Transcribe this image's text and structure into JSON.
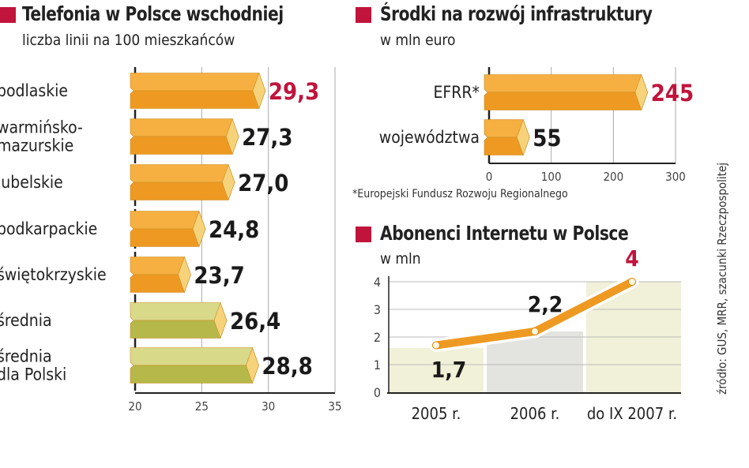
{
  "colors": {
    "accent": "#c0143c",
    "bar_orange_top": "#f5b041",
    "bar_orange_bottom": "#ee9a22",
    "bar_green_top": "#d9d98a",
    "bar_green_bottom": "#b6b94a",
    "line": "#ee9a22",
    "bg_light": "#f1f0d8",
    "bg_grey": "#e3e3e0"
  },
  "chart_data": [
    {
      "type": "bar",
      "orientation": "horizontal",
      "title": "Telefonia w Polsce wschodniej",
      "subtitle": "liczba linii na 100 mieszkańców",
      "categories": [
        "podlaskie",
        "warmińsko-\nmazurskie",
        "lubelskie",
        "podkarpackie",
        "świętokrzyskie",
        "średnia",
        "średnia\ndla Polski"
      ],
      "values": [
        29.3,
        27.3,
        27.0,
        24.8,
        23.7,
        26.4,
        28.8
      ],
      "value_labels": [
        "29,3",
        "27,3",
        "27,0",
        "24,8",
        "23,7",
        "26,4",
        "28,8"
      ],
      "xlim": [
        20,
        35
      ],
      "xticks": [
        "20",
        "25",
        "30",
        "35"
      ],
      "grid": true
    },
    {
      "type": "bar",
      "orientation": "horizontal",
      "title": "Środki na rozwój infrastruktury",
      "subtitle": "w mln euro",
      "categories": [
        "EFRR*",
        "województwa"
      ],
      "values": [
        245,
        55
      ],
      "value_labels": [
        "245",
        "55"
      ],
      "xlim": [
        0,
        300
      ],
      "xticks": [
        "0",
        "100",
        "200",
        "300"
      ],
      "footnote": "*Europejski Fundusz Rozwoju Regionalnego"
    },
    {
      "type": "line",
      "title": "Abonenci Internetu w Polsce",
      "subtitle": "w mln",
      "categories": [
        "2005 r.",
        "2006 r.",
        "do IX 2007 r."
      ],
      "values": [
        1.7,
        2.2,
        4
      ],
      "value_labels": [
        "1,7",
        "2,2",
        "4"
      ],
      "ylim": [
        0,
        4
      ],
      "yticks": [
        "0",
        "1",
        "2",
        "3",
        "4"
      ],
      "grid": true
    }
  ],
  "source": "źródło: GUS, MRR, szacunki Rzeczpospolitej"
}
